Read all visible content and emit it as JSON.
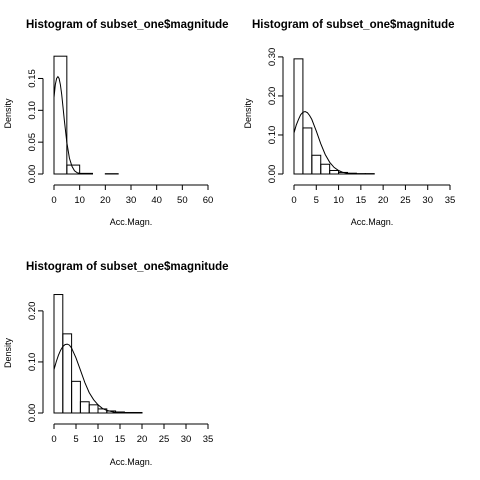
{
  "chart_data": [
    {
      "type": "bar",
      "title": "Histogram of subset_one$magnitude",
      "xlabel": "Acc.Magn.",
      "ylabel": "Density",
      "xlim": [
        0,
        60
      ],
      "ylim": [
        0,
        0.19
      ],
      "x_ticks": [
        0,
        10,
        20,
        30,
        40,
        50,
        60
      ],
      "y_ticks": [
        0.0,
        0.05,
        0.1,
        0.15
      ],
      "y_tick_labels": [
        "0.00",
        "0.05",
        "0.10",
        "0.15"
      ],
      "bins": [
        {
          "x0": 0,
          "x1": 5,
          "density": 0.185
        },
        {
          "x0": 5,
          "x1": 10,
          "density": 0.014
        },
        {
          "x0": 10,
          "x1": 15,
          "density": 0.001
        },
        {
          "x0": 15,
          "x1": 20,
          "density": 0.0
        },
        {
          "x0": 20,
          "x1": 25,
          "density": 0.0005
        },
        {
          "x0": 25,
          "x1": 30,
          "density": 0.0
        }
      ],
      "density_curve": {
        "x": [
          0,
          0.5,
          1,
          1.5,
          2,
          2.5,
          3,
          3.5,
          4,
          5,
          6,
          7,
          8,
          9,
          10,
          12,
          15
        ],
        "y": [
          0.12,
          0.14,
          0.15,
          0.153,
          0.15,
          0.14,
          0.125,
          0.105,
          0.085,
          0.05,
          0.025,
          0.012,
          0.005,
          0.002,
          0.001,
          0.0,
          0.0
        ]
      }
    },
    {
      "type": "bar",
      "title": "Histogram of subset_one$magnitude",
      "xlabel": "Acc.Magn.",
      "ylabel": "Density",
      "xlim": [
        0,
        35
      ],
      "ylim": [
        0,
        0.31
      ],
      "x_ticks": [
        0,
        5,
        10,
        15,
        20,
        25,
        30,
        35
      ],
      "y_ticks": [
        0.0,
        0.1,
        0.2,
        0.3
      ],
      "y_tick_labels": [
        "0.00",
        "0.10",
        "0.20",
        "0.30"
      ],
      "bins": [
        {
          "x0": 0,
          "x1": 2,
          "density": 0.295
        },
        {
          "x0": 2,
          "x1": 4,
          "density": 0.118
        },
        {
          "x0": 4,
          "x1": 6,
          "density": 0.048
        },
        {
          "x0": 6,
          "x1": 8,
          "density": 0.025
        },
        {
          "x0": 8,
          "x1": 10,
          "density": 0.009
        },
        {
          "x0": 10,
          "x1": 12,
          "density": 0.004
        },
        {
          "x0": 12,
          "x1": 14,
          "density": 0.002
        },
        {
          "x0": 14,
          "x1": 16,
          "density": 0.001
        },
        {
          "x0": 16,
          "x1": 18,
          "density": 0.001
        }
      ],
      "density_curve": {
        "x": [
          0,
          0.5,
          1,
          1.5,
          2,
          2.5,
          3,
          3.5,
          4,
          5,
          6,
          7,
          8,
          9,
          10,
          11,
          12,
          14
        ],
        "y": [
          0.105,
          0.125,
          0.14,
          0.152,
          0.158,
          0.16,
          0.157,
          0.15,
          0.14,
          0.11,
          0.078,
          0.05,
          0.03,
          0.017,
          0.009,
          0.004,
          0.002,
          0.0
        ]
      }
    },
    {
      "type": "bar",
      "title": "Histogram of subset_one$magnitude",
      "xlabel": "Acc.Magn.",
      "ylabel": "Density",
      "xlim": [
        0,
        35
      ],
      "ylim": [
        0,
        0.235
      ],
      "x_ticks": [
        0,
        5,
        10,
        15,
        20,
        25,
        30,
        35
      ],
      "y_ticks": [
        0.0,
        0.1,
        0.2
      ],
      "y_tick_labels": [
        "0.00",
        "0.10",
        "0.20"
      ],
      "bins": [
        {
          "x0": 0,
          "x1": 2,
          "density": 0.232
        },
        {
          "x0": 2,
          "x1": 4,
          "density": 0.155
        },
        {
          "x0": 4,
          "x1": 6,
          "density": 0.062
        },
        {
          "x0": 6,
          "x1": 8,
          "density": 0.022
        },
        {
          "x0": 8,
          "x1": 10,
          "density": 0.016
        },
        {
          "x0": 10,
          "x1": 12,
          "density": 0.008
        },
        {
          "x0": 12,
          "x1": 14,
          "density": 0.004
        },
        {
          "x0": 14,
          "x1": 16,
          "density": 0.002
        },
        {
          "x0": 16,
          "x1": 18,
          "density": 0.001
        },
        {
          "x0": 18,
          "x1": 20,
          "density": 0.001
        }
      ],
      "density_curve": {
        "x": [
          0,
          0.5,
          1,
          1.5,
          2,
          2.5,
          3,
          3.5,
          4,
          5,
          6,
          7,
          8,
          9,
          10,
          11,
          12,
          14,
          16
        ],
        "y": [
          0.085,
          0.1,
          0.113,
          0.123,
          0.13,
          0.134,
          0.135,
          0.133,
          0.127,
          0.108,
          0.084,
          0.06,
          0.04,
          0.026,
          0.016,
          0.009,
          0.005,
          0.001,
          0.0
        ]
      }
    }
  ]
}
